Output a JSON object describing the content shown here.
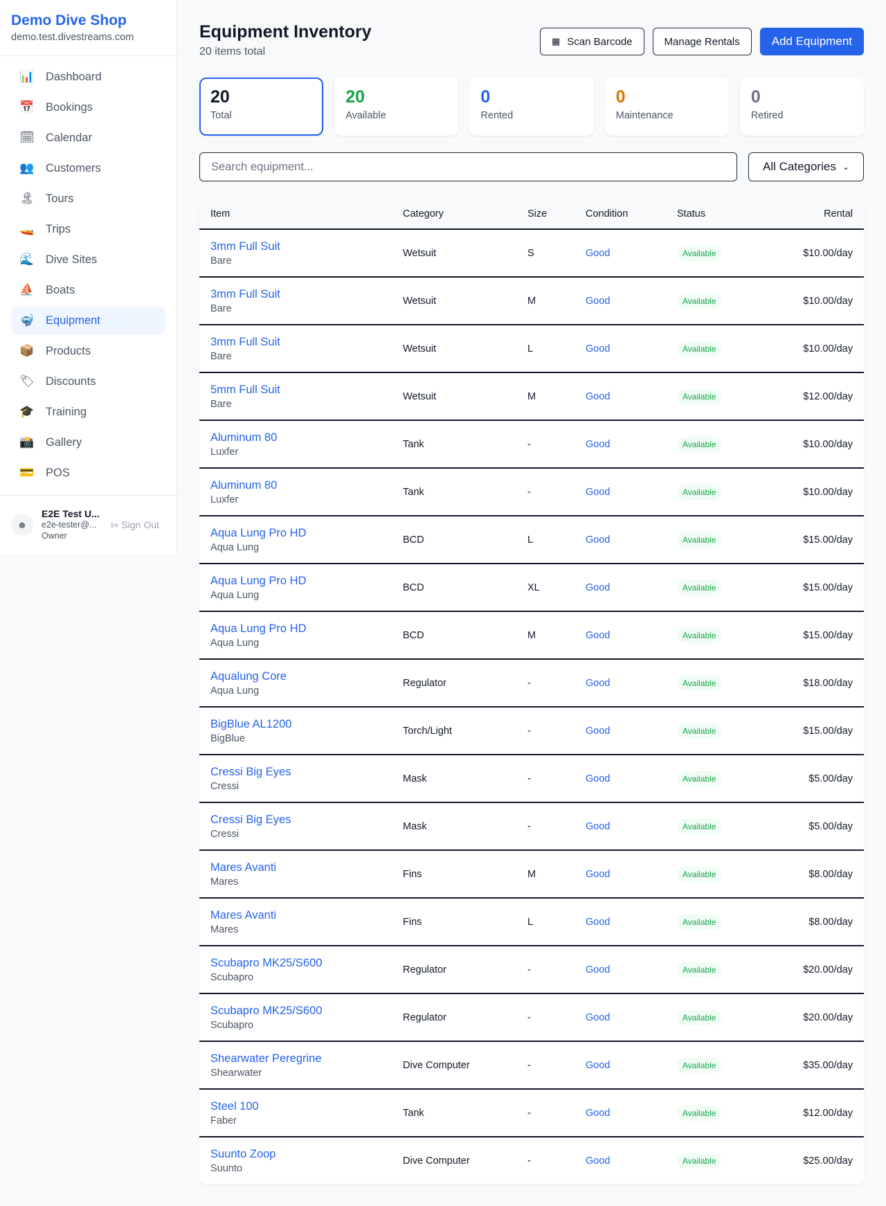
{
  "sidebar": {
    "shop_name": "Demo Dive Shop",
    "domain": "demo.test.divestreams.com",
    "items": [
      {
        "label": "Dashboard",
        "icon": "📊"
      },
      {
        "label": "Bookings",
        "icon": "📅"
      },
      {
        "label": "Calendar",
        "icon": "🗓"
      },
      {
        "label": "Customers",
        "icon": "👥"
      },
      {
        "label": "Tours",
        "icon": "🏝"
      },
      {
        "label": "Trips",
        "icon": "🚤"
      },
      {
        "label": "Dive Sites",
        "icon": "🌊"
      },
      {
        "label": "Boats",
        "icon": "⛵"
      },
      {
        "label": "Equipment",
        "icon": "🤿",
        "active": true
      },
      {
        "label": "Products",
        "icon": "📦"
      },
      {
        "label": "Discounts",
        "icon": "🏷"
      },
      {
        "label": "Training",
        "icon": "🎓"
      },
      {
        "label": "Gallery",
        "icon": "📸"
      },
      {
        "label": "POS",
        "icon": "💳"
      }
    ],
    "user": {
      "name": "E2E Test U...",
      "email": "e2e-tester@...",
      "role": "Owner",
      "sign_out": "Sign Out"
    }
  },
  "header": {
    "title": "Equipment Inventory",
    "subtitle": "20 items total",
    "scan_barcode": "Scan Barcode",
    "manage_rentals": "Manage Rentals",
    "add_equipment": "Add Equipment"
  },
  "stats": [
    {
      "value": "20",
      "label": "Total",
      "color": "#111827"
    },
    {
      "value": "20",
      "label": "Available",
      "color": "#16a34a"
    },
    {
      "value": "0",
      "label": "Rented",
      "color": "#2563eb"
    },
    {
      "value": "0",
      "label": "Maintenance",
      "color": "#d97706"
    },
    {
      "value": "0",
      "label": "Retired",
      "color": "#6b7280"
    }
  ],
  "filters": {
    "search_placeholder": "Search equipment...",
    "category": "All Categories"
  },
  "table": {
    "columns": [
      "Item",
      "Category",
      "Size",
      "Condition",
      "Status",
      "Rental"
    ],
    "rows": [
      [
        "3mm Full Suit",
        "Bare",
        "Wetsuit",
        "S",
        "Good",
        "Available",
        "$10.00/day"
      ],
      [
        "3mm Full Suit",
        "Bare",
        "Wetsuit",
        "M",
        "Good",
        "Available",
        "$10.00/day"
      ],
      [
        "3mm Full Suit",
        "Bare",
        "Wetsuit",
        "L",
        "Good",
        "Available",
        "$10.00/day"
      ],
      [
        "5mm Full Suit",
        "Bare",
        "Wetsuit",
        "M",
        "Good",
        "Available",
        "$12.00/day"
      ],
      [
        "Aluminum 80",
        "Luxfer",
        "Tank",
        "-",
        "Good",
        "Available",
        "$10.00/day"
      ],
      [
        "Aluminum 80",
        "Luxfer",
        "Tank",
        "-",
        "Good",
        "Available",
        "$10.00/day"
      ],
      [
        "Aqua Lung Pro HD",
        "Aqua Lung",
        "BCD",
        "L",
        "Good",
        "Available",
        "$15.00/day"
      ],
      [
        "Aqua Lung Pro HD",
        "Aqua Lung",
        "BCD",
        "XL",
        "Good",
        "Available",
        "$15.00/day"
      ],
      [
        "Aqua Lung Pro HD",
        "Aqua Lung",
        "BCD",
        "M",
        "Good",
        "Available",
        "$15.00/day"
      ],
      [
        "Aqualung Core",
        "Aqua Lung",
        "Regulator",
        "-",
        "Good",
        "Available",
        "$18.00/day"
      ],
      [
        "BigBlue AL1200",
        "BigBlue",
        "Torch/Light",
        "-",
        "Good",
        "Available",
        "$15.00/day"
      ],
      [
        "Cressi Big Eyes",
        "Cressi",
        "Mask",
        "-",
        "Good",
        "Available",
        "$5.00/day"
      ],
      [
        "Cressi Big Eyes",
        "Cressi",
        "Mask",
        "-",
        "Good",
        "Available",
        "$5.00/day"
      ],
      [
        "Mares Avanti",
        "Mares",
        "Fins",
        "M",
        "Good",
        "Available",
        "$8.00/day"
      ],
      [
        "Mares Avanti",
        "Mares",
        "Fins",
        "L",
        "Good",
        "Available",
        "$8.00/day"
      ],
      [
        "Scubapro MK25/S600",
        "Scubapro",
        "Regulator",
        "-",
        "Good",
        "Available",
        "$20.00/day"
      ],
      [
        "Scubapro MK25/S600",
        "Scubapro",
        "Regulator",
        "-",
        "Good",
        "Available",
        "$20.00/day"
      ],
      [
        "Shearwater Peregrine",
        "Shearwater",
        "Dive Computer",
        "-",
        "Good",
        "Available",
        "$35.00/day"
      ],
      [
        "Steel 100",
        "Faber",
        "Tank",
        "-",
        "Good",
        "Available",
        "$12.00/day"
      ],
      [
        "Suunto Zoop",
        "Suunto",
        "Dive Computer",
        "-",
        "Good",
        "Available",
        "$25.00/day"
      ]
    ]
  }
}
